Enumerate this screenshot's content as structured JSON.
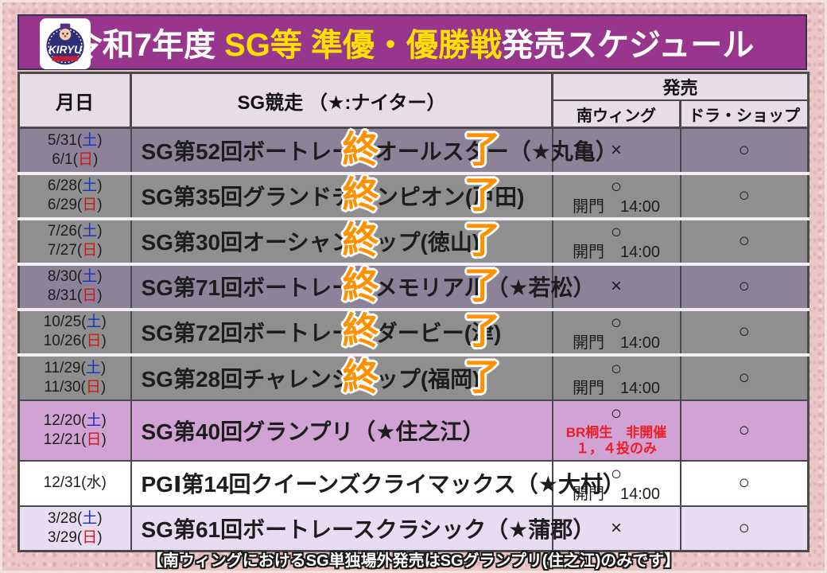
{
  "title": {
    "prefix": "令和7年度 ",
    "highlight": "SG等 準優・優勝戦",
    "suffix": "発売スケジュール"
  },
  "logo": {
    "text": "KIRYU"
  },
  "table": {
    "headers": {
      "date": "月日",
      "race": "SG競走 （★:ナイター）",
      "sale": "発売",
      "minami_wing": "南ウィング",
      "dora_shop": "ドラ・ショップ"
    },
    "finished_stamp": {
      "left": "終",
      "right": "了"
    },
    "rows": [
      {
        "dates": [
          {
            "pre": "5/31(",
            "day": "土",
            "post": ")"
          },
          {
            "pre": "6/1(",
            "day": "日",
            "post": ")"
          }
        ],
        "race": "SG第52回ボートレースオールスター（★丸亀）",
        "style": "gray-purple",
        "finished": true,
        "minami": {
          "mark": "×"
        },
        "dora": "○"
      },
      {
        "dates": [
          {
            "pre": "6/28(",
            "day": "土",
            "post": ")"
          },
          {
            "pre": "6/29(",
            "day": "日",
            "post": ")"
          }
        ],
        "race": "SG第35回グランドチャンピオン(戸田)",
        "style": "gray",
        "finished": true,
        "minami": {
          "mark": "○",
          "note": "開門　14:00"
        },
        "dora": "○"
      },
      {
        "dates": [
          {
            "pre": "7/26(",
            "day": "土",
            "post": ")"
          },
          {
            "pre": "7/27(",
            "day": "日",
            "post": ")"
          }
        ],
        "race": "SG第30回オーシャンカップ(徳山)",
        "style": "gray",
        "finished": true,
        "minami": {
          "mark": "○",
          "note": "開門　14:00"
        },
        "dora": "○"
      },
      {
        "dates": [
          {
            "pre": "8/30(",
            "day": "土",
            "post": ")"
          },
          {
            "pre": "8/31(",
            "day": "日",
            "post": ")"
          }
        ],
        "race": "SG第71回ボートレースメモリアル（★若松）",
        "style": "gray-purple",
        "finished": true,
        "minami": {
          "mark": "×"
        },
        "dora": "○"
      },
      {
        "dates": [
          {
            "pre": "10/25(",
            "day": "土",
            "post": ")"
          },
          {
            "pre": "10/26(",
            "day": "日",
            "post": ")"
          }
        ],
        "race": "SG第72回ボートレースダービー(津)",
        "style": "gray",
        "finished": true,
        "minami": {
          "mark": "○",
          "note": "開門　14:00"
        },
        "dora": "○"
      },
      {
        "dates": [
          {
            "pre": "11/29(",
            "day": "土",
            "post": ")"
          },
          {
            "pre": "11/30(",
            "day": "日",
            "post": ")"
          }
        ],
        "race": "SG第28回チャレンジカップ(福岡)",
        "style": "gray",
        "finished": true,
        "minami": {
          "mark": "○",
          "note": "開門　14:00"
        },
        "dora": "○"
      },
      {
        "dates": [
          {
            "pre": "12/20(",
            "day": "土",
            "post": ")"
          },
          {
            "pre": "12/21(",
            "day": "日",
            "post": ")"
          }
        ],
        "race": "SG第40回グランプリ（★住之江）",
        "style": "pink",
        "finished": false,
        "tall": true,
        "minami": {
          "mark": "○",
          "notes_red": [
            "BR桐生　非開催",
            "１，４投のみ"
          ]
        },
        "dora": "○"
      },
      {
        "dates": [
          {
            "pre": "12/31(",
            "day": "水",
            "post": ")"
          }
        ],
        "race": "PGⅠ第14回クイーンズクライマックス（★大村）",
        "style": "white",
        "finished": false,
        "minami": {
          "mark": "○",
          "note": "開門　14:00"
        },
        "dora": "○"
      },
      {
        "dates": [
          {
            "pre": "3/28(",
            "day": "土",
            "post": ")"
          },
          {
            "pre": "3/29(",
            "day": "日",
            "post": ")"
          }
        ],
        "race": "SG第61回ボートレースクラシック（★蒲郡）",
        "style": "lavender",
        "finished": false,
        "minami": {
          "mark": "×"
        },
        "dora": "○"
      }
    ]
  },
  "footer": "【南ウィングにおけるSG単独場外発売はSGグランプリ(住之江)のみです】",
  "colors": {
    "title_bar": "#98368e",
    "title_highlight": "#ffe100",
    "header_cell": "#e6dde6",
    "row_gray": "#8f8f8f",
    "row_gray_purple": "#8c8398",
    "row_pink": "#d0a3d4",
    "row_white": "#ffffff",
    "row_lavender": "#e7dcf1",
    "stamp_orange": "#ff9000",
    "note_red": "#ee1c24",
    "day_saturday_blue": "#1b2fc4",
    "day_sunday_red": "#d01717"
  }
}
